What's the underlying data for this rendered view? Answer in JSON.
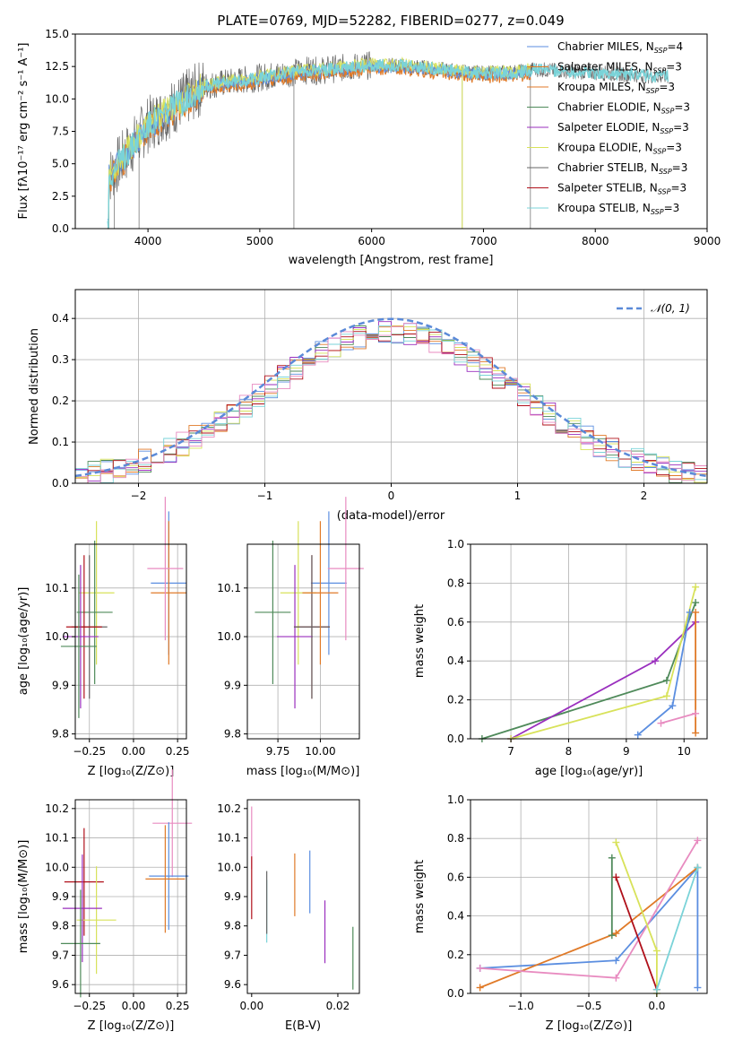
{
  "title": "PLATE=0769, MJD=52282, FIBERID=0277, z=0.049",
  "colors": {
    "chabrier_miles": "#5b8ee0",
    "salpeter_miles": "#e07a28",
    "kroupa_miles": "#e07a28",
    "chabrier_elodie": "#4f8a5a",
    "salpeter_elodie": "#9a2fbe",
    "kroupa_elodie": "#d8e25a",
    "chabrier_stelib": "#666666",
    "salpeter_stelib": "#b0101a",
    "kroupa_stelib": "#7ad3d8",
    "gauss": "#5b8ad8",
    "pink": "#e88bc0"
  },
  "panel1": {
    "xlabel": "wavelength [Angstrom, rest frame]",
    "ylabel": "Flux [fλ10⁻¹⁷ erg cm⁻² s⁻¹ A⁻¹]",
    "xticks": [
      "4000",
      "5000",
      "6000",
      "7000",
      "8000",
      "9000"
    ],
    "yticks": [
      "0.0",
      "2.5",
      "5.0",
      "7.5",
      "10.0",
      "12.5",
      "15.0"
    ],
    "legend": [
      {
        "label": "Chabrier MILES, N",
        "sub": "SSP",
        "tail": "=4",
        "color_key": "chabrier_miles"
      },
      {
        "label": "Salpeter MILES, N",
        "sub": "SSP",
        "tail": "=3",
        "color_key": "salpeter_miles"
      },
      {
        "label": "Kroupa MILES, N",
        "sub": "SSP",
        "tail": "=3",
        "color_key": "kroupa_miles"
      },
      {
        "label": "Chabrier ELODIE, N",
        "sub": "SSP",
        "tail": "=3",
        "color_key": "chabrier_elodie"
      },
      {
        "label": "Salpeter ELODIE, N",
        "sub": "SSP",
        "tail": "=3",
        "color_key": "salpeter_elodie"
      },
      {
        "label": "Kroupa ELODIE, N",
        "sub": "SSP",
        "tail": "=3",
        "color_key": "kroupa_elodie"
      },
      {
        "label": "Chabrier STELIB, N",
        "sub": "SSP",
        "tail": "=3",
        "color_key": "chabrier_stelib"
      },
      {
        "label": "Salpeter STELIB, N",
        "sub": "SSP",
        "tail": "=3",
        "color_key": "salpeter_stelib"
      },
      {
        "label": "Kroupa STELIB, N",
        "sub": "SSP",
        "tail": "=3",
        "color_key": "kroupa_stelib"
      }
    ]
  },
  "panel2": {
    "xlabel": "(data-model)/error",
    "ylabel": "Normed distribution",
    "xticks": [
      "−2",
      "−1",
      "0",
      "1",
      "2"
    ],
    "yticks": [
      "0.0",
      "0.1",
      "0.2",
      "0.3",
      "0.4"
    ],
    "legend_label": "𝒩(0, 1)"
  },
  "panel3": {
    "xlabel": "Z [log₁₀(Z/Z⊙)]",
    "ylabel": "age  [log₁₀(age/yr)]",
    "xticks": [
      "−0.25",
      "0.00",
      "0.25"
    ],
    "yticks": [
      "9.8",
      "9.9",
      "10.0",
      "10.1"
    ]
  },
  "panel4": {
    "xlabel": "mass [log₁₀(M/M⊙)]",
    "xticks": [
      "9.75",
      "10.00"
    ],
    "yticks": [
      "9.8",
      "9.9",
      "10.0",
      "10.1"
    ]
  },
  "panel5": {
    "xlabel": "age  [log₁₀(age/yr)]",
    "ylabel": "mass weight",
    "xticks": [
      "7",
      "8",
      "9",
      "10"
    ],
    "yticks": [
      "0.0",
      "0.2",
      "0.4",
      "0.6",
      "0.8",
      "1.0"
    ]
  },
  "panel6": {
    "xlabel": "Z [log₁₀(Z/Z⊙)]",
    "ylabel": "mass [log₁₀(M/M⊙)]",
    "xticks": [
      "−0.25",
      "0.00",
      "0.25"
    ],
    "yticks": [
      "9.6",
      "9.7",
      "9.8",
      "9.9",
      "10.0",
      "10.1",
      "10.2"
    ]
  },
  "panel7": {
    "xlabel": "E(B-V)",
    "xticks": [
      "0.00",
      "0.02"
    ],
    "yticks": [
      "9.6",
      "9.7",
      "9.8",
      "9.9",
      "10.0",
      "10.1",
      "10.2"
    ]
  },
  "panel8": {
    "xlabel": "Z [log₁₀(Z/Z⊙)]",
    "ylabel": "mass weight",
    "xticks": [
      "−1.0",
      "−0.5",
      "0.0"
    ],
    "yticks": [
      "0.0",
      "0.2",
      "0.4",
      "0.6",
      "0.8",
      "1.0"
    ]
  },
  "chart_data": [
    {
      "type": "line",
      "title": "PLATE=0769, MJD=52282, FIBERID=0277, z=0.049",
      "xlabel": "wavelength [Angstrom, rest frame]",
      "ylabel": "Flux",
      "xlim": [
        3350,
        9000
      ],
      "ylim": [
        0,
        15
      ],
      "series": [
        {
          "name": "Chabrier MILES, NSSP=4",
          "x": [
            3650,
            3800,
            4000,
            4200,
            4500,
            5000,
            5500,
            6000,
            6500,
            7000,
            7400
          ],
          "y": [
            4.5,
            6.5,
            8.0,
            9.5,
            11.0,
            11.8,
            12.4,
            12.6,
            12.5,
            12.6,
            12.4
          ]
        },
        {
          "name": "Chabrier STELIB, NSSP=3",
          "x": [
            3650,
            4000,
            4500,
            5000,
            5500,
            6000,
            6500,
            7000,
            7400,
            7800,
            8200,
            8600
          ],
          "y": [
            5.5,
            8.0,
            11.0,
            11.8,
            12.4,
            12.7,
            12.5,
            12.6,
            12.4,
            12.2,
            12.0,
            11.8
          ]
        }
      ]
    },
    {
      "type": "line",
      "xlabel": "(data-model)/error",
      "ylabel": "Normed distribution",
      "xlim": [
        -2.5,
        2.5
      ],
      "ylim": [
        0,
        0.47
      ],
      "series": [
        {
          "name": "𝒩(0, 1)",
          "x": [
            -2.5,
            -2.0,
            -1.5,
            -1.0,
            -0.5,
            0.0,
            0.5,
            1.0,
            1.5,
            2.0,
            2.5
          ],
          "y": [
            0.018,
            0.054,
            0.13,
            0.242,
            0.352,
            0.399,
            0.352,
            0.242,
            0.13,
            0.054,
            0.018
          ]
        }
      ]
    },
    {
      "type": "scatter",
      "xlabel": "Z [log₁₀(Z/Z⊙)]",
      "ylabel": "age  [log₁₀(age/yr)]",
      "xlim": [
        -0.33,
        0.3
      ],
      "ylim": [
        9.79,
        10.19
      ],
      "points": [
        {
          "x": 0.2,
          "y": 10.11,
          "color_key": "chabrier_miles"
        },
        {
          "x": 0.2,
          "y": 10.09,
          "color_key": "salpeter_miles"
        },
        {
          "x": 0.18,
          "y": 10.14,
          "color_key": "pink"
        },
        {
          "x": -0.21,
          "y": 10.09,
          "color_key": "kroupa_elodie"
        },
        {
          "x": -0.22,
          "y": 10.05,
          "color_key": "chabrier_elodie"
        },
        {
          "x": -0.25,
          "y": 10.02,
          "color_key": "chabrier_stelib"
        },
        {
          "x": -0.28,
          "y": 10.02,
          "color_key": "salpeter_stelib"
        },
        {
          "x": -0.3,
          "y": 10.0,
          "color_key": "salpeter_elodie"
        },
        {
          "x": -0.31,
          "y": 9.98,
          "color_key": "chabrier_elodie"
        }
      ]
    },
    {
      "type": "scatter",
      "xlabel": "age  [log₁₀(age/yr)]",
      "ylabel": "mass weight",
      "xlim": [
        6.3,
        10.4
      ],
      "ylim": [
        0,
        1
      ],
      "series": [
        {
          "name": "Chabrier ELODIE",
          "x": [
            6.5,
            9.7,
            10.2
          ],
          "y": [
            0.0,
            0.3,
            0.7
          ],
          "color_key": "chabrier_elodie"
        },
        {
          "name": "Salpeter ELODIE",
          "x": [
            7.0,
            9.5,
            10.2
          ],
          "y": [
            0.0,
            0.4,
            0.6
          ],
          "color_key": "salpeter_elodie"
        },
        {
          "name": "Kroupa ELODIE",
          "x": [
            7.0,
            9.7,
            10.2
          ],
          "y": [
            0.0,
            0.22,
            0.78
          ],
          "color_key": "kroupa_elodie"
        },
        {
          "name": "Chabrier MILES",
          "x": [
            9.2,
            9.8,
            10.1
          ],
          "y": [
            0.02,
            0.17,
            0.65
          ],
          "color_key": "chabrier_miles"
        },
        {
          "name": "Salpeter MILES",
          "x": [
            10.2,
            10.2
          ],
          "y": [
            0.03,
            0.65
          ],
          "color_key": "salpeter_miles"
        },
        {
          "name": "Pink",
          "x": [
            9.6,
            10.2
          ],
          "y": [
            0.08,
            0.13
          ],
          "color_key": "pink"
        }
      ]
    },
    {
      "type": "scatter",
      "xlabel": "Z [log₁₀(Z/Z⊙)]",
      "ylabel": "mass [log₁₀(M/M⊙)]",
      "xlim": [
        -0.33,
        0.3
      ],
      "ylim": [
        9.57,
        10.23
      ],
      "points": [
        {
          "x": 0.22,
          "y": 10.15,
          "color_key": "pink"
        },
        {
          "x": 0.2,
          "y": 9.97,
          "color_key": "chabrier_miles"
        },
        {
          "x": 0.18,
          "y": 9.96,
          "color_key": "salpeter_miles"
        },
        {
          "x": -0.28,
          "y": 9.95,
          "color_key": "salpeter_stelib"
        },
        {
          "x": -0.21,
          "y": 9.82,
          "color_key": "kroupa_elodie"
        },
        {
          "x": -0.29,
          "y": 9.86,
          "color_key": "salpeter_elodie"
        },
        {
          "x": -0.3,
          "y": 9.74,
          "color_key": "chabrier_elodie"
        }
      ]
    },
    {
      "type": "scatter",
      "xlabel": "E(B-V)",
      "ylabel": "mass",
      "xlim": [
        -0.001,
        0.025
      ],
      "ylim": [
        9.57,
        10.23
      ],
      "points": [
        {
          "x": 0.0,
          "y": 10.1,
          "color_key": "pink"
        },
        {
          "x": 0.0,
          "y": 9.93,
          "color_key": "salpeter_stelib"
        },
        {
          "x": 0.0035,
          "y": 9.85,
          "color_key": "kroupa_stelib"
        },
        {
          "x": 0.0035,
          "y": 9.88,
          "color_key": "chabrier_stelib"
        },
        {
          "x": 0.01,
          "y": 9.94,
          "color_key": "salpeter_miles"
        },
        {
          "x": 0.0135,
          "y": 9.95,
          "color_key": "chabrier_miles"
        },
        {
          "x": 0.017,
          "y": 9.78,
          "color_key": "salpeter_elodie"
        },
        {
          "x": 0.0235,
          "y": 9.69,
          "color_key": "chabrier_elodie"
        }
      ]
    },
    {
      "type": "scatter",
      "xlabel": "Z [log₁₀(Z/Z⊙)]",
      "ylabel": "mass weight",
      "xlim": [
        -1.37,
        0.37
      ],
      "ylim": [
        0,
        1
      ],
      "series": [
        {
          "name": "Chabrier MILES",
          "x": [
            -1.3,
            -0.3,
            0.3,
            0.3
          ],
          "y": [
            0.13,
            0.17,
            0.65,
            0.03
          ],
          "color_key": "chabrier_miles"
        },
        {
          "name": "Salpeter MILES",
          "x": [
            -1.3,
            -0.3,
            0.3
          ],
          "y": [
            0.03,
            0.31,
            0.65
          ],
          "color_key": "salpeter_miles"
        },
        {
          "name": "Pink",
          "x": [
            -1.3,
            -0.3,
            0.3
          ],
          "y": [
            0.13,
            0.08,
            0.79
          ],
          "color_key": "pink"
        },
        {
          "name": "Kroupa ELODIE",
          "x": [
            -0.3,
            0.0,
            0.0
          ],
          "y": [
            0.78,
            0.22,
            0.0
          ],
          "color_key": "kroupa_elodie"
        },
        {
          "name": "Salpeter STELIB",
          "x": [
            -0.3,
            0.0
          ],
          "y": [
            0.6,
            0.02
          ],
          "color_key": "salpeter_stelib"
        },
        {
          "name": "Chabrier ELODIE",
          "x": [
            -0.33,
            -0.33
          ],
          "y": [
            0.3,
            0.7
          ],
          "color_key": "chabrier_elodie"
        },
        {
          "name": "Kroupa STELIB",
          "x": [
            0.0,
            0.3
          ],
          "y": [
            0.02,
            0.65
          ],
          "color_key": "kroupa_stelib"
        }
      ]
    }
  ]
}
